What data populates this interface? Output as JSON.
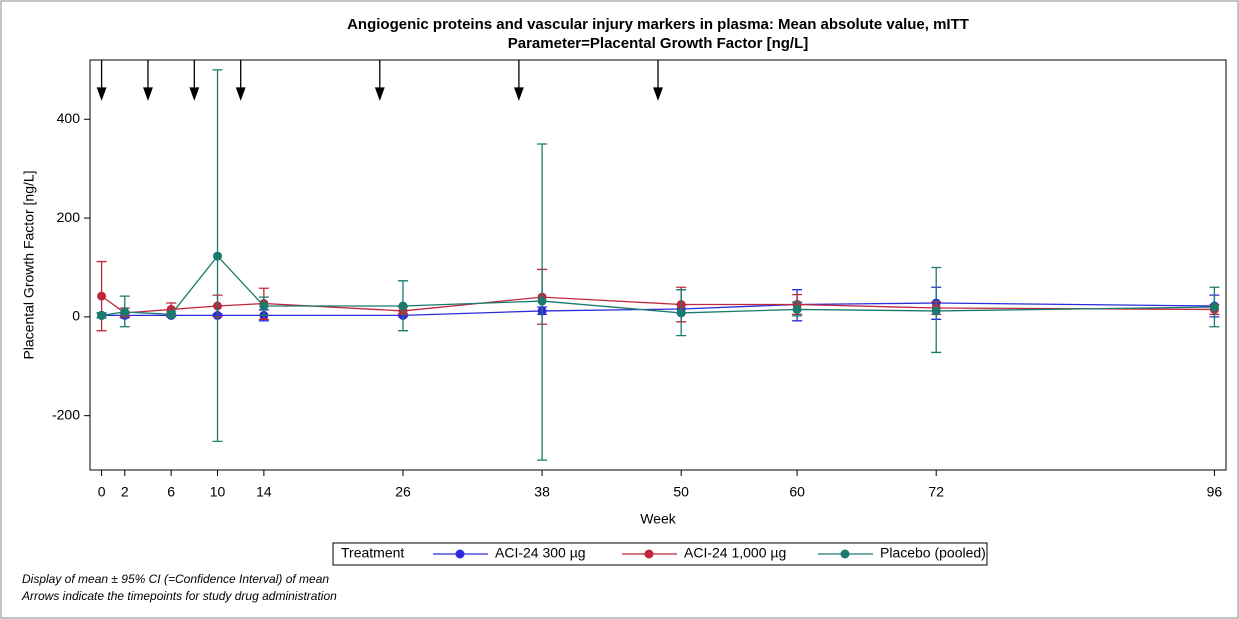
{
  "chart_data": {
    "type": "line",
    "title": "Angiogenic proteins and vascular injury markers in plasma: Mean absolute value, mITT",
    "subtitle": "Parameter=Placental Growth Factor [ng/L]",
    "x_label": "Week",
    "y_label": "Placental Growth Factor [ng/L]",
    "x": [
      0,
      2,
      6,
      10,
      14,
      26,
      38,
      50,
      60,
      72,
      96
    ],
    "xlim": [
      -1,
      97
    ],
    "xticks": [
      0,
      2,
      6,
      10,
      14,
      26,
      38,
      50,
      60,
      72,
      96
    ],
    "ylim": [
      -310,
      520
    ],
    "yticks": [
      -200,
      0,
      200,
      400
    ],
    "administration_weeks": [
      0,
      4,
      8,
      12,
      24,
      36,
      48
    ],
    "legend_title": "Treatment",
    "legend_position": "bottom",
    "series": [
      {
        "name": "ACI-24 300 µg",
        "color": "#2b2bd9",
        "values": [
          3,
          3,
          3,
          3,
          3,
          3,
          12,
          16,
          25,
          28,
          22
        ],
        "lower": [
          -2,
          -2,
          0,
          0,
          -8,
          0,
          5,
          8,
          -8,
          -5,
          0
        ],
        "upper": [
          8,
          8,
          6,
          6,
          14,
          6,
          20,
          24,
          55,
          60,
          44
        ]
      },
      {
        "name": "ACI-24 1,000 µg",
        "color": "#c0283c",
        "values": [
          42,
          8,
          15,
          22,
          27,
          12,
          40,
          25,
          25,
          18,
          15
        ],
        "lower": [
          -28,
          0,
          2,
          0,
          -5,
          5,
          -15,
          -10,
          5,
          5,
          5
        ],
        "upper": [
          112,
          18,
          28,
          44,
          58,
          20,
          96,
          60,
          45,
          30,
          25
        ]
      },
      {
        "name": "Placebo (pooled)",
        "color": "#1a7a6e",
        "values": [
          3,
          10,
          5,
          123,
          22,
          22,
          32,
          8,
          15,
          12,
          20
        ],
        "lower": [
          -2,
          -20,
          0,
          -252,
          3,
          -28,
          -290,
          -38,
          2,
          -72,
          -20
        ],
        "upper": [
          8,
          42,
          10,
          500,
          40,
          73,
          350,
          55,
          30,
          100,
          60
        ]
      }
    ],
    "footnotes": [
      "Display of mean ± 95% CI (=Confidence Interval) of mean",
      "Arrows indicate the timepoints for study drug administration"
    ]
  }
}
